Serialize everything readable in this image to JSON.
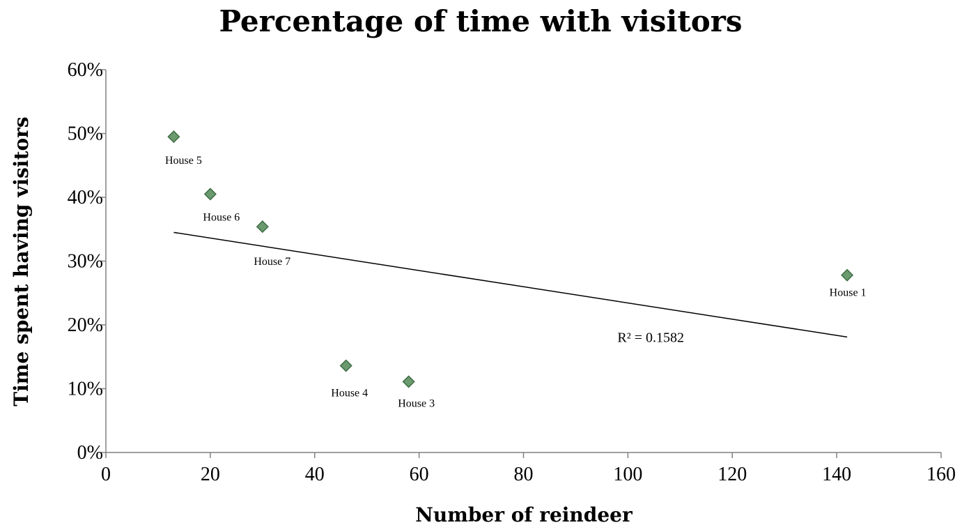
{
  "chart_data": {
    "type": "scatter",
    "title": "Percentage of time with visitors",
    "xlabel": "Number of reindeer",
    "ylabel": "Time spent having visitors",
    "xlim": [
      0,
      160
    ],
    "ylim": [
      0,
      0.6
    ],
    "x_ticks": [
      "0",
      "20",
      "40",
      "60",
      "80",
      "100",
      "120",
      "140",
      "160"
    ],
    "y_ticks": [
      "0%",
      "10%",
      "20%",
      "30%",
      "40%",
      "50%",
      "60%"
    ],
    "grid": false,
    "legend": "none",
    "marker_color": "#6a9a6e",
    "marker_edge_color": "#3f6e45",
    "points": [
      {
        "label": "House 5",
        "x": 13,
        "y": 0.495
      },
      {
        "label": "House 6",
        "x": 20,
        "y": 0.405
      },
      {
        "label": "House 7",
        "x": 30,
        "y": 0.354
      },
      {
        "label": "House 4",
        "x": 46,
        "y": 0.136
      },
      {
        "label": "House 3",
        "x": 58,
        "y": 0.111
      },
      {
        "label": "House 1",
        "x": 142,
        "y": 0.278
      }
    ],
    "trendline": {
      "type": "linear",
      "x": [
        13,
        142
      ],
      "y": [
        0.345,
        0.181
      ],
      "r2_label": "R² = 0.1582"
    }
  }
}
